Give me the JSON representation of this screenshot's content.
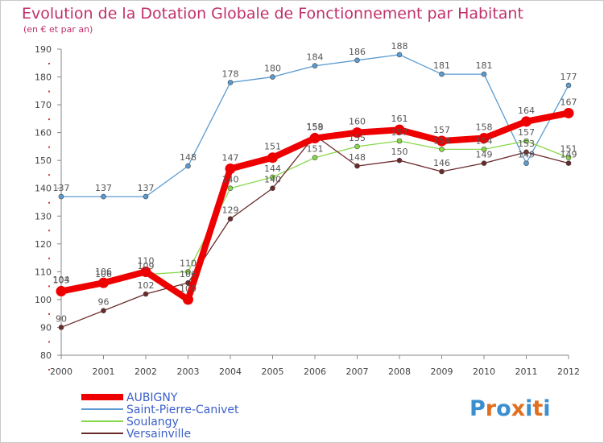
{
  "chart_data": {
    "type": "line",
    "title": "Evolution de la Dotation Globale de Fonctionnement par Habitant",
    "subtitle": "(en € et par an)",
    "xlabel": "",
    "ylabel": "",
    "x": [
      "2000",
      "2001",
      "2002",
      "2003",
      "2004",
      "2005",
      "2006",
      "2007",
      "2008",
      "2009",
      "2010",
      "2011",
      "2012"
    ],
    "ylim": [
      80,
      190
    ],
    "yticks": [
      80,
      90,
      100,
      110,
      120,
      130,
      140,
      150,
      160,
      170,
      180,
      190
    ],
    "grid": false,
    "legend_position": "bottom-left",
    "series": [
      {
        "name": "Saint-Pierre-Canivet",
        "color": "#5b9bd0",
        "values": [
          137,
          137,
          137,
          148,
          178,
          180,
          184,
          186,
          188,
          181,
          181,
          149,
          177
        ]
      },
      {
        "name": "Soulangy",
        "color": "#88d84a",
        "values": [
          104,
          106,
          109,
          110,
          140,
          144,
          151,
          155,
          157,
          154,
          154,
          157,
          151
        ]
      },
      {
        "name": "Versainville",
        "color": "#6b2a2a",
        "values": [
          90,
          96,
          102,
          106,
          129,
          140,
          159,
          148,
          150,
          146,
          149,
          153,
          149
        ]
      },
      {
        "name": "AUBIGNY",
        "color": "#ee0000",
        "values": [
          103,
          106,
          110,
          100,
          147,
          151,
          158,
          160,
          161,
          157,
          158,
          164,
          167
        ]
      }
    ]
  },
  "legend": {
    "items": [
      {
        "label": "AUBIGNY",
        "color": "#ee0000"
      },
      {
        "label": "Saint-Pierre-Canivet",
        "color": "#5b9bd0"
      },
      {
        "label": "Soulangy",
        "color": "#88d84a"
      },
      {
        "label": "Versainville",
        "color": "#6b2a2a"
      }
    ]
  },
  "brand": {
    "text": "Proxiti",
    "letter_colors": [
      "#3a8fd0",
      "#e07020",
      "#3a8fd0",
      "#e07020",
      "#3a8fd0",
      "#e07020",
      "#3a8fd0"
    ]
  }
}
